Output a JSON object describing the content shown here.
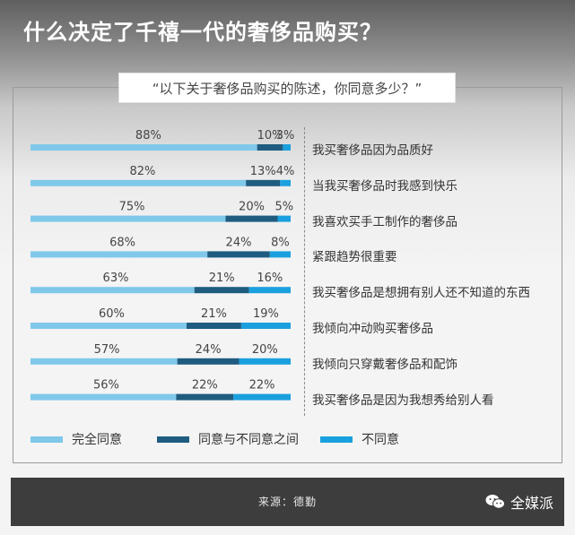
{
  "title": "什么决定了千禧一代的奢侈品购买？",
  "subtitle": "“以下关于奢侈品购买的陈述，你同意多少？”",
  "legend": {
    "completely_agree": "完全同意",
    "neutral": "同意与不同意之间",
    "disagree": "不同意"
  },
  "footer": {
    "source": "来源：德勤",
    "brand": "全媒派"
  },
  "colors": {
    "completely_agree": "#7fc8ea",
    "neutral": "#1f5c80",
    "disagree": "#1aa0de"
  },
  "chart_data": {
    "type": "bar",
    "orientation": "horizontal-stacked",
    "xlim": [
      0,
      100
    ],
    "categories": [
      "我买奢侈品因为品质好",
      "当我买奢侈品时我感到快乐",
      "我喜欢买手工制作的奢侈品",
      "紧跟趋势很重要",
      "我买奢侈品是想拥有别人还不知道的东西",
      "我倾向冲动购买奢侈品",
      "我倾向只穿戴奢侈品和配饰",
      "我买奢侈品是因为我想秀给别人看"
    ],
    "series": [
      {
        "name": "完全同意",
        "values": [
          88,
          82,
          75,
          68,
          63,
          60,
          57,
          56
        ]
      },
      {
        "name": "同意与不同意之间",
        "values": [
          10,
          13,
          20,
          24,
          21,
          21,
          24,
          22
        ]
      },
      {
        "name": "不同意",
        "values": [
          3,
          4,
          5,
          8,
          16,
          19,
          20,
          22
        ]
      }
    ],
    "legend_position": "bottom",
    "grid": false
  }
}
